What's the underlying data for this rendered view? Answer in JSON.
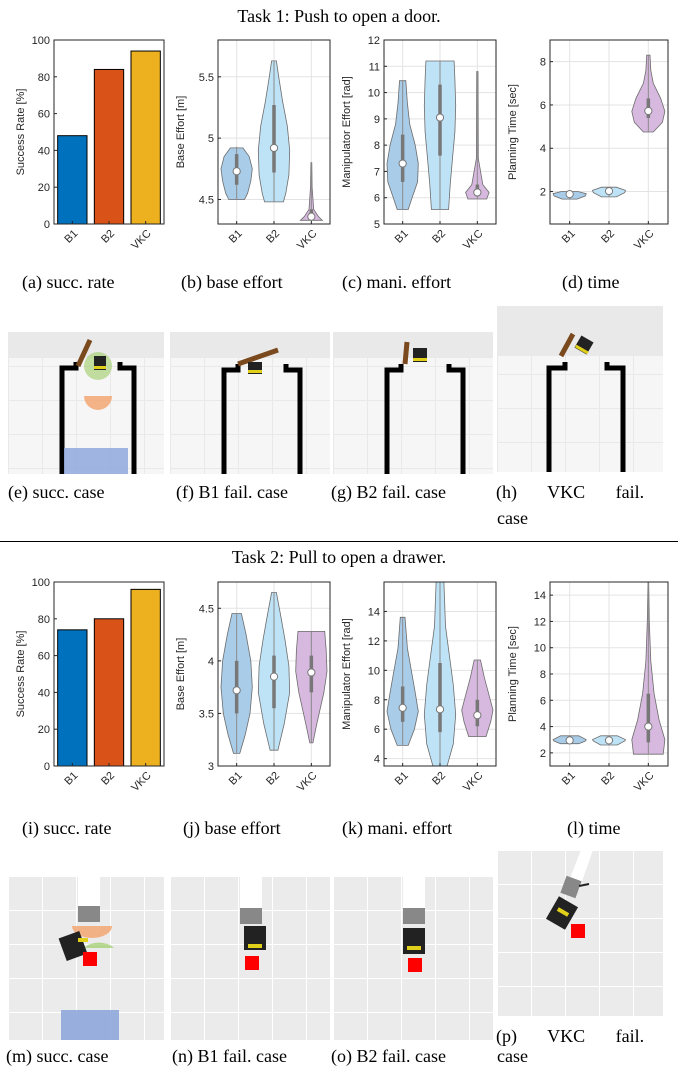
{
  "task1": {
    "title": "Task 1: Push to open a door.",
    "captions": [
      "(a) succ. rate",
      "(b) base effort",
      "(c) mani. effort",
      "(d) time",
      "(e) succ. case",
      "(f) B1 fail. case",
      "(g) B2 fail. case",
      "(h) VKC fail.",
      "case"
    ]
  },
  "task2": {
    "title": "Task 2: Pull to open a drawer.",
    "captions": [
      "(i) succ. rate",
      "(j) base effort",
      "(k) mani. effort",
      "(l) time",
      "(m) succ. case",
      "(n) B1 fail. case",
      "(o) B2 fail. case",
      "(p) VKC fail.",
      "case"
    ]
  },
  "colors": {
    "B1_bar": "#0072BD",
    "B2_bar": "#D95319",
    "VKC_bar": "#EDB120",
    "B1_violin": "#a9cce8",
    "B2_violin": "#bfe3f6",
    "VKC_violin": "#d7b8df"
  },
  "chart_data": [
    {
      "id": "a",
      "type": "bar",
      "categories": [
        "B1",
        "B2",
        "VKC"
      ],
      "values": [
        48,
        84,
        94
      ],
      "ylabel": "Success Rate [%]",
      "ylim": [
        0,
        100
      ],
      "yticks": [
        0,
        20,
        40,
        60,
        80,
        100
      ],
      "grid": false
    },
    {
      "id": "b",
      "type": "violin",
      "categories": [
        "B1",
        "B2",
        "VKC"
      ],
      "ylabel": "Base Effort [m]",
      "ylim": [
        4.3,
        5.8
      ],
      "yticks": [
        4.5,
        5,
        5.5
      ],
      "yticklabels": [
        "4.5",
        "5",
        "5.5"
      ],
      "series": [
        {
          "name": "B1",
          "min": 4.5,
          "max": 4.93,
          "median": 4.73,
          "q1": 4.62,
          "q3": 4.87,
          "profile": [
            [
              4.5,
              0.5
            ],
            [
              4.55,
              0.7
            ],
            [
              4.65,
              0.9
            ],
            [
              4.75,
              1
            ],
            [
              4.85,
              0.8
            ],
            [
              4.92,
              0.4
            ]
          ]
        },
        {
          "name": "B2",
          "min": 4.48,
          "max": 5.63,
          "median": 4.92,
          "q1": 4.72,
          "q3": 5.27,
          "profile": [
            [
              4.48,
              0.6
            ],
            [
              4.55,
              0.75
            ],
            [
              4.7,
              0.95
            ],
            [
              4.9,
              1
            ],
            [
              5.1,
              0.85
            ],
            [
              5.3,
              0.55
            ],
            [
              5.5,
              0.3
            ],
            [
              5.63,
              0.15
            ]
          ]
        },
        {
          "name": "VKC",
          "min": 4.33,
          "max": 4.8,
          "median": 4.36,
          "q1": 4.34,
          "q3": 4.42,
          "profile": [
            [
              4.33,
              0.7
            ],
            [
              4.36,
              0.45
            ],
            [
              4.42,
              0.15
            ],
            [
              4.6,
              0.05
            ],
            [
              4.8,
              0.03
            ]
          ]
        }
      ]
    },
    {
      "id": "c",
      "type": "violin",
      "categories": [
        "B1",
        "B2",
        "VKC"
      ],
      "ylabel": "Manipulator Effort [rad]",
      "ylim": [
        5,
        12
      ],
      "yticks": [
        5,
        6,
        7,
        8,
        9,
        10,
        11,
        12
      ],
      "series": [
        {
          "name": "B1",
          "min": 5.55,
          "max": 10.45,
          "median": 7.3,
          "q1": 6.6,
          "q3": 8.4,
          "profile": [
            [
              5.55,
              0.35
            ],
            [
              6,
              0.6
            ],
            [
              6.6,
              0.95
            ],
            [
              7.3,
              1
            ],
            [
              8,
              0.8
            ],
            [
              8.8,
              0.45
            ],
            [
              9.6,
              0.3
            ],
            [
              10.45,
              0.2
            ]
          ]
        },
        {
          "name": "B2",
          "min": 5.55,
          "max": 11.2,
          "median": 9.05,
          "q1": 7.6,
          "q3": 10.3,
          "profile": [
            [
              5.55,
              0.55
            ],
            [
              6.5,
              0.65
            ],
            [
              7.5,
              0.8
            ],
            [
              8.5,
              0.95
            ],
            [
              9.5,
              1
            ],
            [
              10.5,
              0.95
            ],
            [
              11.2,
              0.9
            ]
          ]
        },
        {
          "name": "VKC",
          "min": 5.95,
          "max": 10.8,
          "median": 6.2,
          "q1": 6.05,
          "q3": 6.5,
          "profile": [
            [
              5.95,
              0.6
            ],
            [
              6.2,
              0.75
            ],
            [
              6.5,
              0.35
            ],
            [
              7.5,
              0.06
            ],
            [
              10.8,
              0.04
            ]
          ]
        }
      ]
    },
    {
      "id": "d",
      "type": "violin",
      "categories": [
        "B1",
        "B2",
        "VKC"
      ],
      "ylabel": "Planning Time [sec]",
      "ylim": [
        0.5,
        9
      ],
      "yticks": [
        2,
        4,
        6,
        8
      ],
      "series": [
        {
          "name": "B1",
          "min": 1.65,
          "max": 2.0,
          "median": 1.88,
          "q1": 1.82,
          "q3": 1.93,
          "profile": [
            [
              1.65,
              0.45
            ],
            [
              1.8,
              0.95
            ],
            [
              1.9,
              1
            ],
            [
              2.0,
              0.5
            ]
          ]
        },
        {
          "name": "B2",
          "min": 1.75,
          "max": 2.2,
          "median": 2.02,
          "q1": 1.95,
          "q3": 2.08,
          "profile": [
            [
              1.75,
              0.45
            ],
            [
              1.95,
              0.95
            ],
            [
              2.05,
              1
            ],
            [
              2.2,
              0.45
            ]
          ]
        },
        {
          "name": "VKC",
          "min": 4.75,
          "max": 8.3,
          "median": 5.72,
          "q1": 5.4,
          "q3": 6.3,
          "profile": [
            [
              4.75,
              0.3
            ],
            [
              5.2,
              0.85
            ],
            [
              5.7,
              1
            ],
            [
              6.3,
              0.75
            ],
            [
              7,
              0.3
            ],
            [
              7.6,
              0.15
            ],
            [
              8.3,
              0.1
            ]
          ]
        }
      ]
    },
    {
      "id": "i",
      "type": "bar",
      "categories": [
        "B1",
        "B2",
        "VKC"
      ],
      "values": [
        74,
        80,
        96
      ],
      "ylabel": "Success Rate [%]",
      "ylim": [
        0,
        100
      ],
      "yticks": [
        0,
        20,
        40,
        60,
        80,
        100
      ],
      "grid": false
    },
    {
      "id": "j",
      "type": "violin",
      "categories": [
        "B1",
        "B2",
        "VKC"
      ],
      "ylabel": "Base Effort [m]",
      "ylim": [
        3,
        4.75
      ],
      "yticks": [
        3,
        3.5,
        4,
        4.5
      ],
      "yticklabels": [
        "3",
        "3.5",
        "4",
        "4.5"
      ],
      "series": [
        {
          "name": "B1",
          "min": 3.12,
          "max": 4.45,
          "median": 3.72,
          "q1": 3.5,
          "q3": 4.0,
          "profile": [
            [
              3.12,
              0.2
            ],
            [
              3.3,
              0.55
            ],
            [
              3.5,
              0.85
            ],
            [
              3.75,
              1
            ],
            [
              4.0,
              0.9
            ],
            [
              4.25,
              0.6
            ],
            [
              4.45,
              0.3
            ]
          ]
        },
        {
          "name": "B2",
          "min": 3.15,
          "max": 4.65,
          "median": 3.85,
          "q1": 3.55,
          "q3": 4.05,
          "profile": [
            [
              3.15,
              0.25
            ],
            [
              3.4,
              0.65
            ],
            [
              3.7,
              1
            ],
            [
              3.95,
              0.95
            ],
            [
              4.2,
              0.7
            ],
            [
              4.45,
              0.4
            ],
            [
              4.65,
              0.15
            ]
          ]
        },
        {
          "name": "VKC",
          "min": 3.22,
          "max": 4.28,
          "median": 3.89,
          "q1": 3.7,
          "q3": 4.05,
          "profile": [
            [
              3.22,
              0.1
            ],
            [
              3.4,
              0.35
            ],
            [
              3.7,
              0.8
            ],
            [
              3.9,
              1
            ],
            [
              4.1,
              0.95
            ],
            [
              4.28,
              0.85
            ]
          ]
        }
      ]
    },
    {
      "id": "k",
      "type": "violin",
      "categories": [
        "B1",
        "B2",
        "VKC"
      ],
      "ylabel": "Manipulator Effort [rad]",
      "ylim": [
        3.5,
        16
      ],
      "yticks": [
        4,
        6,
        8,
        10,
        12,
        14
      ],
      "series": [
        {
          "name": "B1",
          "min": 4.9,
          "max": 13.6,
          "median": 7.45,
          "q1": 6.5,
          "q3": 8.9,
          "profile": [
            [
              4.9,
              0.35
            ],
            [
              6,
              0.75
            ],
            [
              7.2,
              1
            ],
            [
              8.5,
              0.8
            ],
            [
              10,
              0.55
            ],
            [
              11.5,
              0.3
            ],
            [
              13.6,
              0.15
            ]
          ]
        },
        {
          "name": "B2",
          "min": 3.0,
          "max": 16,
          "median": 7.35,
          "q1": 5.8,
          "q3": 10.5,
          "profile": [
            [
              3.0,
              0.45
            ],
            [
              5,
              0.85
            ],
            [
              7,
              1
            ],
            [
              9,
              0.85
            ],
            [
              11,
              0.6
            ],
            [
              13,
              0.35
            ],
            [
              16,
              0.25
            ]
          ]
        },
        {
          "name": "VKC",
          "min": 5.5,
          "max": 10.7,
          "median": 6.95,
          "q1": 6.2,
          "q3": 8.0,
          "profile": [
            [
              5.5,
              0.55
            ],
            [
              6.5,
              0.85
            ],
            [
              7.3,
              1
            ],
            [
              8.3,
              0.75
            ],
            [
              9.5,
              0.45
            ],
            [
              10.7,
              0.2
            ]
          ]
        }
      ]
    },
    {
      "id": "l",
      "type": "violin",
      "categories": [
        "B1",
        "B2",
        "VKC"
      ],
      "ylabel": "Planning Time [sec]",
      "ylim": [
        1,
        15
      ],
      "yticks": [
        2,
        4,
        6,
        8,
        10,
        12,
        14
      ],
      "series": [
        {
          "name": "B1",
          "min": 2.7,
          "max": 3.3,
          "median": 2.95,
          "q1": 2.85,
          "q3": 3.05,
          "profile": [
            [
              2.7,
              0.55
            ],
            [
              2.9,
              0.95
            ],
            [
              3.0,
              1
            ],
            [
              3.3,
              0.55
            ]
          ]
        },
        {
          "name": "B2",
          "min": 2.6,
          "max": 3.3,
          "median": 2.95,
          "q1": 2.85,
          "q3": 3.05,
          "profile": [
            [
              2.6,
              0.5
            ],
            [
              2.9,
              0.95
            ],
            [
              3.0,
              1
            ],
            [
              3.3,
              0.5
            ]
          ]
        },
        {
          "name": "VKC",
          "min": 1.9,
          "max": 15,
          "median": 4.0,
          "q1": 2.8,
          "q3": 6.5,
          "profile": [
            [
              1.9,
              0.9
            ],
            [
              3,
              1
            ],
            [
              4.5,
              0.65
            ],
            [
              6.5,
              0.35
            ],
            [
              9,
              0.15
            ],
            [
              12,
              0.06
            ],
            [
              15,
              0.02
            ]
          ]
        }
      ]
    }
  ]
}
